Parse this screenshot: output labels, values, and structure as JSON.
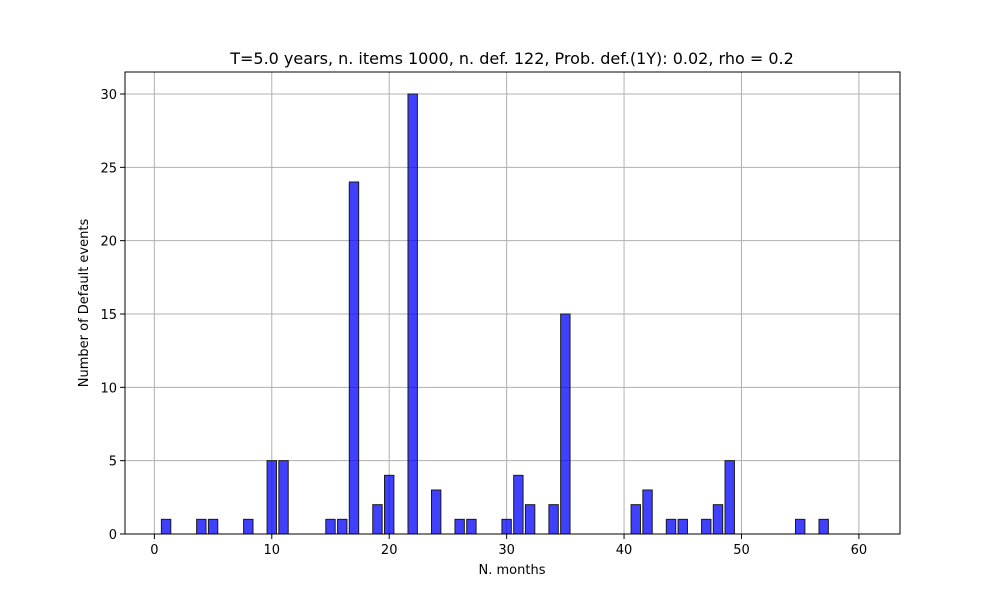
{
  "chart_data": {
    "type": "bar",
    "title": "T=5.0 years, n. items 1000, n. def. 122, Prob. def.(1Y): 0.02, rho = 0.2",
    "xlabel": "N. months",
    "ylabel": "Number of Default events",
    "xlim": [
      -2.5,
      63.5
    ],
    "ylim": [
      0,
      31.5
    ],
    "xticks": [
      0,
      10,
      20,
      30,
      40,
      50,
      60
    ],
    "yticks": [
      0,
      5,
      10,
      15,
      20,
      25,
      30
    ],
    "grid": true,
    "bar_color": "#0000ff",
    "x": [
      0,
      1,
      2,
      3,
      4,
      5,
      6,
      7,
      8,
      9,
      10,
      11,
      12,
      13,
      14,
      15,
      16,
      17,
      18,
      19,
      20,
      21,
      22,
      23,
      24,
      25,
      26,
      27,
      28,
      29,
      30,
      31,
      32,
      33,
      34,
      35,
      36,
      37,
      38,
      39,
      40,
      41,
      42,
      43,
      44,
      45,
      46,
      47,
      48,
      49,
      50,
      51,
      52,
      53,
      54,
      55,
      56,
      57,
      58,
      59,
      60
    ],
    "values": [
      0,
      1,
      0,
      0,
      1,
      1,
      0,
      0,
      1,
      0,
      5,
      5,
      0,
      0,
      0,
      1,
      1,
      24,
      0,
      2,
      4,
      0,
      30,
      0,
      3,
      0,
      1,
      1,
      0,
      0,
      1,
      4,
      2,
      0,
      2,
      15,
      0,
      0,
      0,
      0,
      0,
      2,
      3,
      0,
      1,
      1,
      0,
      1,
      2,
      5,
      0,
      0,
      0,
      0,
      0,
      1,
      0,
      1,
      0,
      0,
      0
    ]
  }
}
